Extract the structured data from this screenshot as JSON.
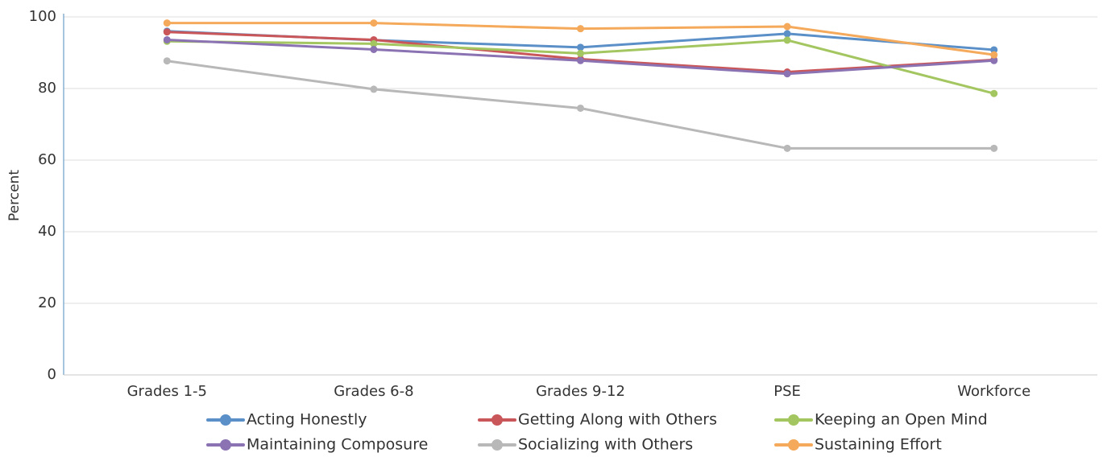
{
  "chart_data": {
    "type": "line",
    "title": "",
    "xlabel": "",
    "ylabel": "Percent",
    "categories": [
      "Grades 1-5",
      "Grades 6-8",
      "Grades 9-12",
      "PSE",
      "Workforce"
    ],
    "y_ticks": [
      "0",
      "20",
      "40",
      "60",
      "80",
      "100"
    ],
    "ylim": [
      0,
      100
    ],
    "grid": true,
    "legend_placement": "bottom",
    "series": [
      {
        "name": "Acting Honestly",
        "color": "#5b8fc7",
        "values": [
          96,
          93.5,
          91.5,
          95.3,
          90.8
        ]
      },
      {
        "name": "Getting Along with Others",
        "color": "#c9575a",
        "values": [
          95.8,
          93.6,
          88.2,
          84.6,
          88
        ]
      },
      {
        "name": "Keeping an Open Mind",
        "color": "#a3c660",
        "values": [
          93.2,
          92.5,
          89.8,
          93.5,
          78.6
        ]
      },
      {
        "name": "Maintaining Composure",
        "color": "#8a72b3",
        "values": [
          93.6,
          90.9,
          87.8,
          84.1,
          87.8
        ]
      },
      {
        "name": "Socializing with Others",
        "color": "#b8b8b8",
        "values": [
          87.7,
          79.8,
          74.5,
          63.3,
          63.3
        ]
      },
      {
        "name": "Sustaining Effort",
        "color": "#f5a95a",
        "values": [
          98.3,
          98.3,
          96.7,
          97.3,
          89.4
        ]
      }
    ]
  }
}
